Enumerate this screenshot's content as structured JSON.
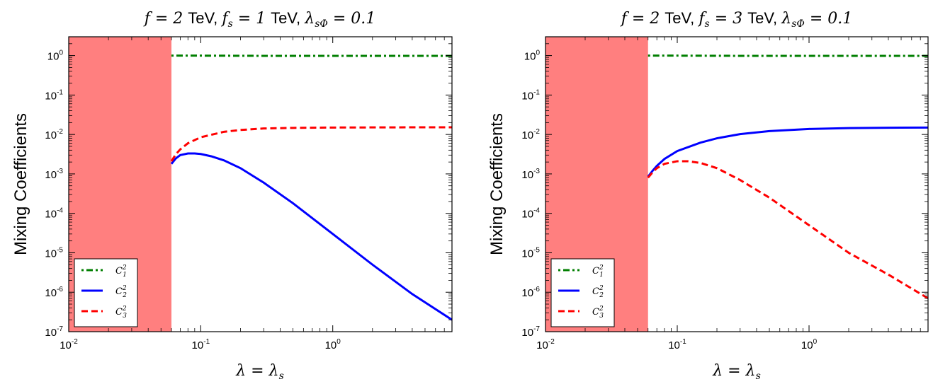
{
  "chart_data": [
    {
      "type": "line",
      "title": "f = 2 TeV, f_s = 1 TeV, λ_sΦ = 0.1",
      "title_parts": {
        "f": "f = 2 ",
        "tev1": "TeV, ",
        "fs": "f",
        "fs_sub": "s",
        "fs_val": " = 1 ",
        "tev2": "TeV, ",
        "lam": "λ",
        "lam_sub": "sΦ",
        "lam_val": " = 0.1"
      },
      "xlabel": "λ = λ_s",
      "xlabel_parts": {
        "a": "λ = λ",
        "sub": "s"
      },
      "ylabel": "Mixing Coefficients",
      "x_scale": "log",
      "y_scale": "log",
      "xlim": [
        0.01,
        8.0
      ],
      "ylim": [
        1e-07,
        3.0
      ],
      "x_ticks": [
        {
          "value": 0.01,
          "base": "10",
          "exp": "-2"
        },
        {
          "value": 0.1,
          "base": "10",
          "exp": "-1"
        },
        {
          "value": 1,
          "base": "10",
          "exp": "0"
        }
      ],
      "y_ticks": [
        {
          "value": 1e-07,
          "base": "10",
          "exp": "-7"
        },
        {
          "value": 1e-06,
          "base": "10",
          "exp": "-6"
        },
        {
          "value": 1e-05,
          "base": "10",
          "exp": "-5"
        },
        {
          "value": 0.0001,
          "base": "10",
          "exp": "-4"
        },
        {
          "value": 0.001,
          "base": "10",
          "exp": "-3"
        },
        {
          "value": 0.01,
          "base": "10",
          "exp": "-2"
        },
        {
          "value": 0.1,
          "base": "10",
          "exp": "-1"
        },
        {
          "value": 1,
          "base": "10",
          "exp": "0"
        }
      ],
      "excluded_region": {
        "x": [
          0.01,
          0.06
        ],
        "color": "#ff7f7f"
      },
      "legend_position": "lower-left",
      "grid": false,
      "series": [
        {
          "name": "C_1^2",
          "label": "C",
          "sup": "2",
          "sub": "1",
          "color": "#007f00",
          "style": "dashdot",
          "x": [
            0.06,
            0.1,
            0.3,
            1,
            3,
            8
          ],
          "y": [
            1.0,
            0.997,
            0.985,
            0.985,
            0.985,
            0.985
          ]
        },
        {
          "name": "C_2^2",
          "label": "C",
          "sup": "2",
          "sub": "2",
          "color": "#0000ff",
          "style": "solid",
          "x": [
            0.06,
            0.065,
            0.07,
            0.08,
            0.09,
            0.1,
            0.12,
            0.15,
            0.2,
            0.3,
            0.5,
            1,
            2,
            4,
            8
          ],
          "y": [
            0.0018,
            0.0025,
            0.003,
            0.0033,
            0.0033,
            0.0032,
            0.0028,
            0.0022,
            0.0014,
            0.0006,
            0.00018,
            3e-05,
            5e-06,
            9e-07,
            2e-07
          ]
        },
        {
          "name": "C_3^2",
          "label": "C",
          "sup": "2",
          "sub": "3",
          "color": "#ff0000",
          "style": "dashed",
          "x": [
            0.06,
            0.065,
            0.07,
            0.08,
            0.1,
            0.15,
            0.2,
            0.3,
            0.5,
            1,
            2,
            4,
            8
          ],
          "y": [
            0.0021,
            0.0032,
            0.0042,
            0.006,
            0.0085,
            0.0117,
            0.013,
            0.0142,
            0.0147,
            0.015,
            0.0151,
            0.0152,
            0.0152
          ]
        }
      ]
    },
    {
      "type": "line",
      "title": "f = 2 TeV, f_s = 3 TeV, λ_sΦ = 0.1",
      "title_parts": {
        "f": "f = 2 ",
        "tev1": "TeV, ",
        "fs": "f",
        "fs_sub": "s",
        "fs_val": " = 3 ",
        "tev2": "TeV, ",
        "lam": "λ",
        "lam_sub": "sΦ",
        "lam_val": " = 0.1"
      },
      "xlabel": "λ = λ_s",
      "xlabel_parts": {
        "a": "λ = λ",
        "sub": "s"
      },
      "ylabel": "Mixing Coefficients",
      "x_scale": "log",
      "y_scale": "log",
      "xlim": [
        0.01,
        8.0
      ],
      "ylim": [
        1e-07,
        3.0
      ],
      "x_ticks": [
        {
          "value": 0.01,
          "base": "10",
          "exp": "-2"
        },
        {
          "value": 0.1,
          "base": "10",
          "exp": "-1"
        },
        {
          "value": 1,
          "base": "10",
          "exp": "0"
        }
      ],
      "y_ticks": [
        {
          "value": 1e-07,
          "base": "10",
          "exp": "-7"
        },
        {
          "value": 1e-06,
          "base": "10",
          "exp": "-6"
        },
        {
          "value": 1e-05,
          "base": "10",
          "exp": "-5"
        },
        {
          "value": 0.0001,
          "base": "10",
          "exp": "-4"
        },
        {
          "value": 0.001,
          "base": "10",
          "exp": "-3"
        },
        {
          "value": 0.01,
          "base": "10",
          "exp": "-2"
        },
        {
          "value": 0.1,
          "base": "10",
          "exp": "-1"
        },
        {
          "value": 1,
          "base": "10",
          "exp": "0"
        }
      ],
      "excluded_region": {
        "x": [
          0.01,
          0.06
        ],
        "color": "#ff7f7f"
      },
      "legend_position": "lower-left",
      "grid": false,
      "series": [
        {
          "name": "C_1^2",
          "label": "C",
          "sup": "2",
          "sub": "1",
          "color": "#007f00",
          "style": "dashdot",
          "x": [
            0.06,
            0.1,
            0.3,
            1,
            3,
            8
          ],
          "y": [
            1.0,
            0.997,
            0.985,
            0.985,
            0.985,
            0.985
          ]
        },
        {
          "name": "C_2^2",
          "label": "C",
          "sup": "2",
          "sub": "2",
          "color": "#0000ff",
          "style": "solid",
          "x": [
            0.06,
            0.065,
            0.07,
            0.08,
            0.1,
            0.15,
            0.2,
            0.3,
            0.5,
            1,
            2,
            4,
            8
          ],
          "y": [
            0.00085,
            0.0012,
            0.0016,
            0.0024,
            0.0038,
            0.0062,
            0.008,
            0.0102,
            0.0122,
            0.0138,
            0.0145,
            0.0148,
            0.015
          ]
        },
        {
          "name": "C_3^2",
          "label": "C",
          "sup": "2",
          "sub": "3",
          "color": "#ff0000",
          "style": "dashed",
          "x": [
            0.06,
            0.065,
            0.07,
            0.08,
            0.1,
            0.12,
            0.15,
            0.2,
            0.3,
            0.5,
            1,
            2,
            4,
            8
          ],
          "y": [
            0.0008,
            0.0011,
            0.0014,
            0.0018,
            0.0021,
            0.0021,
            0.0019,
            0.0014,
            0.0007,
            0.00025,
            5e-05,
            1e-05,
            2.8e-06,
            7e-07
          ]
        }
      ]
    }
  ]
}
